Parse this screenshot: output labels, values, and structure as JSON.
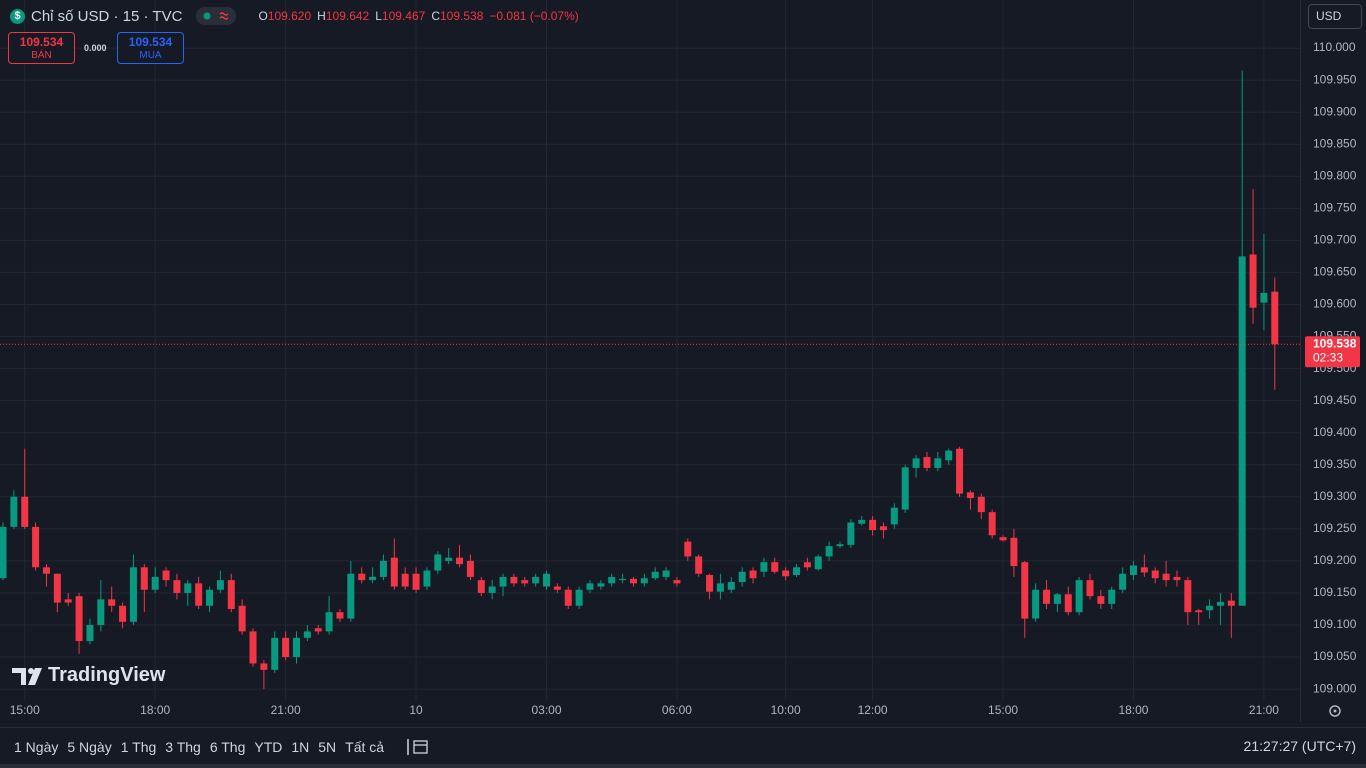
{
  "header": {
    "icon": "$",
    "symbol": "Chỉ số USD · 15 · TVC",
    "ohlc": [
      {
        "key": "O",
        "value": "109.620"
      },
      {
        "key": "H",
        "value": "109.642"
      },
      {
        "key": "L",
        "value": "109.467"
      },
      {
        "key": "C",
        "value": "109.538"
      }
    ],
    "change": "−0.081 (−0.07%)"
  },
  "trade": {
    "sell_price": "109.534",
    "sell_label": "BÁN",
    "spread": "0.000",
    "buy_price": "109.534",
    "buy_label": "MUA"
  },
  "currency": "USD",
  "watermark": "TradingView",
  "ranges": [
    "1 Ngày",
    "5 Ngày",
    "1 Thg",
    "3 Thg",
    "6 Thg",
    "YTD",
    "1N",
    "5N",
    "Tất cả"
  ],
  "clock": "21:27:27 (UTC+7)",
  "chart_data": {
    "type": "candlestick",
    "up_color": "#089981",
    "down_color": "#f23645",
    "grid": true,
    "last_price": 109.538,
    "countdown": "02:33",
    "categories": [
      null,
      null,
      "15:00",
      null,
      null,
      null,
      null,
      null,
      null,
      null,
      null,
      null,
      null,
      null,
      "18:00",
      null,
      null,
      null,
      null,
      null,
      null,
      null,
      null,
      null,
      null,
      null,
      "21:00",
      null,
      null,
      null,
      null,
      null,
      null,
      null,
      null,
      null,
      null,
      null,
      "10",
      null,
      null,
      null,
      null,
      null,
      null,
      null,
      null,
      null,
      null,
      null,
      "03:00",
      null,
      null,
      null,
      null,
      null,
      null,
      null,
      null,
      null,
      null,
      null,
      "06:00",
      null,
      null,
      null,
      null,
      null,
      null,
      null,
      null,
      null,
      "10:00",
      null,
      null,
      null,
      null,
      null,
      null,
      null,
      "12:00",
      null,
      null,
      null,
      null,
      null,
      null,
      null,
      null,
      null,
      null,
      null,
      "15:00",
      null,
      null,
      null,
      null,
      null,
      null,
      null,
      null,
      null,
      null,
      null,
      "18:00",
      null,
      null,
      null,
      null,
      null,
      null,
      null,
      null,
      null,
      null,
      null,
      "21:00",
      null
    ],
    "open": [
      109.173,
      109.253,
      109.3,
      109.253,
      109.19,
      109.18,
      109.14,
      109.145,
      109.075,
      109.1,
      109.14,
      109.13,
      109.105,
      109.19,
      109.155,
      109.185,
      109.17,
      109.15,
      109.165,
      109.13,
      109.155,
      109.17,
      109.13,
      109.09,
      109.04,
      109.03,
      109.08,
      109.05,
      109.08,
      109.095,
      109.09,
      109.12,
      109.11,
      109.18,
      109.17,
      109.175,
      109.205,
      109.18,
      109.18,
      109.16,
      109.185,
      109.2,
      109.205,
      109.2,
      109.17,
      109.15,
      109.16,
      109.175,
      109.17,
      109.165,
      109.16,
      109.16,
      109.155,
      109.13,
      109.155,
      109.16,
      109.165,
      109.17,
      109.172,
      109.165,
      109.173,
      109.175,
      109.17,
      109.23,
      109.207,
      109.178,
      109.152,
      109.155,
      109.167,
      109.185,
      109.183,
      109.198,
      109.185,
      109.178,
      109.198,
      109.187,
      109.207,
      109.223,
      109.225,
      109.258,
      109.264,
      109.254,
      109.257,
      109.28,
      109.345,
      109.362,
      109.345,
      109.357,
      109.375,
      109.307,
      109.3,
      109.276,
      109.237,
      109.236,
      109.198,
      109.11,
      109.155,
      109.133,
      109.148,
      109.12,
      109.17,
      109.145,
      109.133,
      109.155,
      109.178,
      109.19,
      109.185,
      109.18,
      109.175,
      109.17,
      109.123,
      109.123,
      109.13,
      109.138,
      109.13,
      109.678,
      109.603,
      109.62
    ],
    "high": [
      109.26,
      109.31,
      109.375,
      109.26,
      109.195,
      109.18,
      109.15,
      109.15,
      109.11,
      109.17,
      109.16,
      109.135,
      109.21,
      109.195,
      109.19,
      109.19,
      109.18,
      109.17,
      109.175,
      109.16,
      109.185,
      109.18,
      109.14,
      109.095,
      109.045,
      109.09,
      109.09,
      109.09,
      109.1,
      109.1,
      109.145,
      109.125,
      109.2,
      109.19,
      109.19,
      109.21,
      109.235,
      109.19,
      109.19,
      109.19,
      109.215,
      109.22,
      109.225,
      109.21,
      109.175,
      109.17,
      109.18,
      109.18,
      109.175,
      109.18,
      109.185,
      109.165,
      109.16,
      109.16,
      109.17,
      109.17,
      109.18,
      109.18,
      109.175,
      109.18,
      109.19,
      109.19,
      109.175,
      109.235,
      109.21,
      109.18,
      109.18,
      109.175,
      109.19,
      109.19,
      109.205,
      109.205,
      109.19,
      109.195,
      109.205,
      109.21,
      109.23,
      109.23,
      109.265,
      109.27,
      109.27,
      109.26,
      109.29,
      109.35,
      109.365,
      109.37,
      109.37,
      109.375,
      109.378,
      109.31,
      109.305,
      109.28,
      109.24,
      109.25,
      109.2,
      109.165,
      109.17,
      109.15,
      109.16,
      109.175,
      109.18,
      109.155,
      109.16,
      109.19,
      109.2,
      109.21,
      109.19,
      109.2,
      109.185,
      109.175,
      109.125,
      109.14,
      109.15,
      109.15,
      109.965,
      109.78,
      109.71,
      109.642
    ],
    "low": [
      109.17,
      109.25,
      109.25,
      109.185,
      109.16,
      109.12,
      109.13,
      109.055,
      109.07,
      109.09,
      109.12,
      109.095,
      109.1,
      109.12,
      109.15,
      109.16,
      109.14,
      109.13,
      109.125,
      109.12,
      109.15,
      109.12,
      109.085,
      109.035,
      109.0,
      109.025,
      109.045,
      109.04,
      109.075,
      109.085,
      109.085,
      109.105,
      109.105,
      109.165,
      109.165,
      109.17,
      109.155,
      109.155,
      109.15,
      109.155,
      109.18,
      109.195,
      109.19,
      109.17,
      109.145,
      109.14,
      109.145,
      109.16,
      109.16,
      109.16,
      109.155,
      109.15,
      109.125,
      109.125,
      109.15,
      109.155,
      109.16,
      109.165,
      109.16,
      109.16,
      109.17,
      109.17,
      109.16,
      109.2,
      109.175,
      109.14,
      109.14,
      109.15,
      109.16,
      109.165,
      109.175,
      109.18,
      109.17,
      109.175,
      109.185,
      109.185,
      109.2,
      109.22,
      109.22,
      109.255,
      109.24,
      109.235,
      109.25,
      109.275,
      109.33,
      109.34,
      109.34,
      109.35,
      109.3,
      109.28,
      109.265,
      109.235,
      109.23,
      109.175,
      109.08,
      109.105,
      109.125,
      109.12,
      109.115,
      109.115,
      109.14,
      109.125,
      109.125,
      109.15,
      109.17,
      109.175,
      109.165,
      109.16,
      109.16,
      109.1,
      109.1,
      109.11,
      109.1,
      109.08,
      109.13,
      109.57,
      109.56,
      109.467
    ],
    "close": [
      109.253,
      109.3,
      109.253,
      109.19,
      109.18,
      109.135,
      109.135,
      109.075,
      109.1,
      109.14,
      109.13,
      109.105,
      109.19,
      109.155,
      109.175,
      109.17,
      109.15,
      109.165,
      109.13,
      109.155,
      109.17,
      109.125,
      109.09,
      109.04,
      109.03,
      109.08,
      109.05,
      109.08,
      109.09,
      109.09,
      109.12,
      109.11,
      109.18,
      109.17,
      109.175,
      109.2,
      109.16,
      109.16,
      109.155,
      109.185,
      109.21,
      109.205,
      109.195,
      109.175,
      109.15,
      109.16,
      109.175,
      109.165,
      109.165,
      109.175,
      109.18,
      109.155,
      109.13,
      109.155,
      109.165,
      109.165,
      109.175,
      109.172,
      109.165,
      109.173,
      109.183,
      109.185,
      109.165,
      109.207,
      109.18,
      109.152,
      109.165,
      109.167,
      109.183,
      109.173,
      109.198,
      109.183,
      109.176,
      109.19,
      109.19,
      109.207,
      109.223,
      109.226,
      109.26,
      109.264,
      109.248,
      109.248,
      109.283,
      109.346,
      109.36,
      109.345,
      109.36,
      109.372,
      109.305,
      109.298,
      109.276,
      109.24,
      109.232,
      109.192,
      109.11,
      109.155,
      109.133,
      109.148,
      109.12,
      109.17,
      109.145,
      109.133,
      109.155,
      109.18,
      109.193,
      109.182,
      109.173,
      109.17,
      109.17,
      109.12,
      109.12,
      109.13,
      109.136,
      109.13,
      109.675,
      109.595,
      109.618,
      109.538
    ],
    "ylim": [
      108.983,
      110.075
    ],
    "yticks": [
      {
        "value": 109.0,
        "label": "109.000"
      },
      {
        "value": 109.05,
        "label": "109.050"
      },
      {
        "value": 109.1,
        "label": "109.100"
      },
      {
        "value": 109.15,
        "label": "109.150"
      },
      {
        "value": 109.2,
        "label": "109.200"
      },
      {
        "value": 109.25,
        "label": "109.250"
      },
      {
        "value": 109.3,
        "label": "109.300"
      },
      {
        "value": 109.35,
        "label": "109.350"
      },
      {
        "value": 109.4,
        "label": "109.400"
      },
      {
        "value": 109.45,
        "label": "109.450"
      },
      {
        "value": 109.5,
        "label": "109.500"
      },
      {
        "value": 109.55,
        "label": "109.550"
      },
      {
        "value": 109.6,
        "label": "109.600"
      },
      {
        "value": 109.65,
        "label": "109.650"
      },
      {
        "value": 109.7,
        "label": "109.700"
      },
      {
        "value": 109.75,
        "label": "109.750"
      },
      {
        "value": 109.8,
        "label": "109.800"
      },
      {
        "value": 109.85,
        "label": "109.850"
      },
      {
        "value": 109.9,
        "label": "109.900"
      },
      {
        "value": 109.95,
        "label": "109.950"
      },
      {
        "value": 110.0,
        "label": "110.000"
      }
    ]
  }
}
